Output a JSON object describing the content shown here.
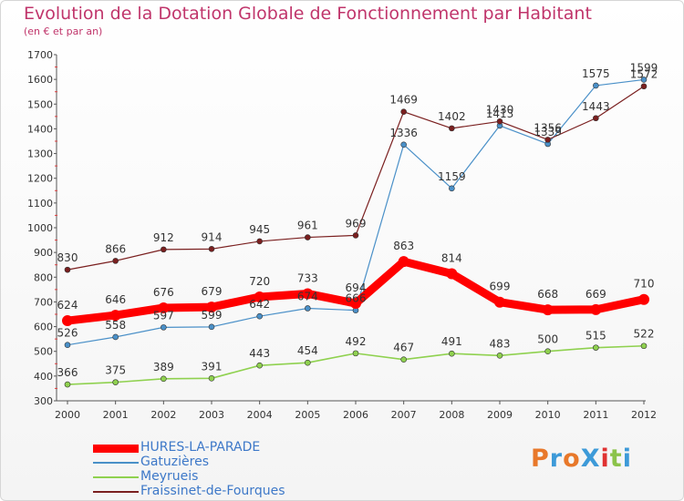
{
  "title": "Evolution de la Dotation Globale de Fonctionnement par Habitant",
  "subtitle": "(en € et par an)",
  "logo": {
    "text": "ProXiti",
    "colors": [
      "#e8782a",
      "#3d9ad8",
      "#e8782a",
      "#3d9ad8",
      "#e03232",
      "#8bc34a",
      "#3d9ad8"
    ]
  },
  "chart_data": {
    "type": "line",
    "title": "Evolution de la Dotation Globale de Fonctionnement par Habitant",
    "subtitle": "(en € et par an)",
    "x": [
      "2000",
      "2001",
      "2002",
      "2003",
      "2004",
      "2005",
      "2006",
      "2007",
      "2008",
      "2009",
      "2010",
      "2011",
      "2012"
    ],
    "ylim": [
      300,
      1700
    ],
    "yticks": [
      300,
      400,
      500,
      600,
      700,
      800,
      900,
      1000,
      1100,
      1200,
      1300,
      1400,
      1500,
      1600,
      1700
    ],
    "grid": false,
    "legend": "bottom-left",
    "series": [
      {
        "name": "HURES-LA-PARADE",
        "color": "#ff0000",
        "values": [
          624,
          646,
          676,
          679,
          720,
          733,
          694,
          863,
          814,
          699,
          668,
          669,
          710
        ]
      },
      {
        "name": "Gatuzières",
        "color": "#4a90c8",
        "values": [
          526,
          558,
          597,
          599,
          642,
          674,
          666,
          1336,
          1159,
          1413,
          1339,
          1575,
          1599
        ]
      },
      {
        "name": "Meyrueis",
        "color": "#8fd14f",
        "values": [
          366,
          375,
          389,
          391,
          443,
          454,
          492,
          467,
          491,
          483,
          500,
          515,
          522
        ]
      },
      {
        "name": "Fraissinet-de-Fourques",
        "color": "#7a1f1f",
        "values": [
          830,
          866,
          912,
          914,
          945,
          961,
          969,
          1469,
          1402,
          1430,
          1356,
          1443,
          1572
        ]
      }
    ]
  }
}
